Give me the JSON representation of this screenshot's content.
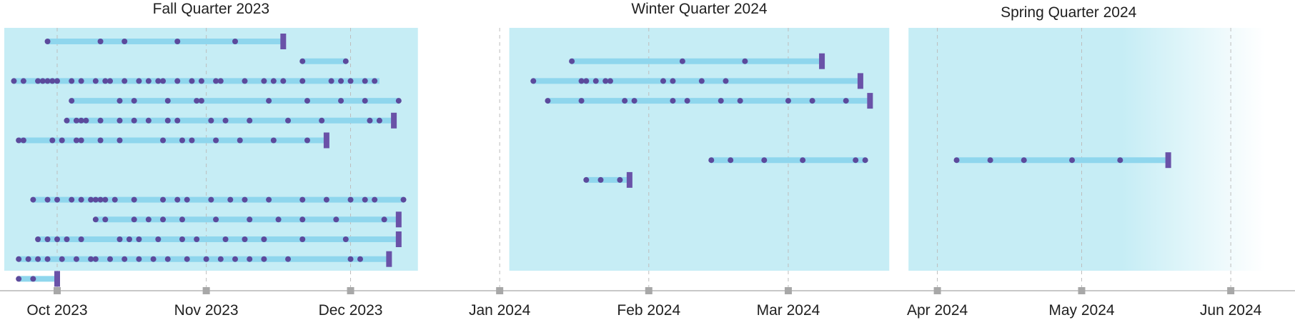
{
  "chart_data": {
    "type": "timeline",
    "x_axis": {
      "type": "date",
      "range": [
        "2023-09-20",
        "2024-06-08"
      ],
      "ticks": [
        {
          "date": "2023-10-01",
          "label": "Oct 2023"
        },
        {
          "date": "2023-11-01",
          "label": "Nov 2023"
        },
        {
          "date": "2023-12-01",
          "label": "Dec 2023"
        },
        {
          "date": "2024-01-01",
          "label": "Jan 2024"
        },
        {
          "date": "2024-02-01",
          "label": "Feb 2024"
        },
        {
          "date": "2024-03-01",
          "label": "Mar 2024"
        },
        {
          "date": "2024-04-01",
          "label": "Apr 2024"
        },
        {
          "date": "2024-05-01",
          "label": "May 2024"
        },
        {
          "date": "2024-06-01",
          "label": "Jun 2024"
        }
      ],
      "grid": true
    },
    "quarters": [
      {
        "name": "Fall Quarter 2023",
        "start": "2023-09-20",
        "end": "2023-12-15"
      },
      {
        "name": "Winter Quarter 2024",
        "start": "2024-01-03",
        "end": "2024-03-22"
      },
      {
        "name": "Spring Quarter 2024",
        "start": "2024-03-26",
        "end": "2024-06-08",
        "fade_out": true
      }
    ],
    "rows": [
      {
        "segments": [
          {
            "start": "2023-09-29",
            "end": "2023-11-17",
            "end_marker": true,
            "events": [
              "2023-09-29",
              "2023-10-10",
              "2023-10-15",
              "2023-10-26",
              "2023-11-07"
            ]
          }
        ]
      },
      {
        "segments": [
          {
            "start": "2023-11-21",
            "end": "2023-11-30",
            "end_marker": false,
            "events": [
              "2023-11-21",
              "2023-11-30"
            ]
          },
          {
            "start": "2024-01-16",
            "end": "2024-03-08",
            "end_marker": true,
            "events": [
              "2024-01-16",
              "2024-02-08",
              "2024-02-21"
            ]
          }
        ]
      },
      {
        "segments": [
          {
            "start": "2023-09-22",
            "end": "2023-12-07",
            "end_marker": false,
            "events": [
              "2023-09-22",
              "2023-09-24",
              "2023-09-27",
              "2023-09-28",
              "2023-09-29",
              "2023-09-30",
              "2023-10-01",
              "2023-10-04",
              "2023-10-06",
              "2023-10-09",
              "2023-10-11",
              "2023-10-12",
              "2023-10-15",
              "2023-10-18",
              "2023-10-20",
              "2023-10-22",
              "2023-10-23",
              "2023-10-26",
              "2023-10-29",
              "2023-10-31",
              "2023-11-03",
              "2023-11-04",
              "2023-11-09",
              "2023-11-13",
              "2023-11-15",
              "2023-11-17",
              "2023-11-21",
              "2023-11-27",
              "2023-11-29",
              "2023-12-01",
              "2023-12-04",
              "2023-12-06"
            ]
          },
          {
            "start": "2024-01-08",
            "end": "2024-03-16",
            "end_marker": true,
            "events": [
              "2024-01-08",
              "2024-01-18",
              "2024-01-19",
              "2024-01-21",
              "2024-01-23",
              "2024-01-24",
              "2024-02-04",
              "2024-02-06",
              "2024-02-12",
              "2024-02-17"
            ]
          }
        ]
      },
      {
        "segments": [
          {
            "start": "2023-10-04",
            "end": "2023-12-11",
            "end_marker": false,
            "events": [
              "2023-10-04",
              "2023-10-14",
              "2023-10-17",
              "2023-10-24",
              "2023-10-30",
              "2023-10-31",
              "2023-11-14",
              "2023-11-22",
              "2023-11-29",
              "2023-12-04",
              "2023-12-11"
            ]
          },
          {
            "start": "2024-01-11",
            "end": "2024-03-18",
            "end_marker": true,
            "events": [
              "2024-01-11",
              "2024-01-18",
              "2024-01-27",
              "2024-01-29",
              "2024-02-06",
              "2024-02-09",
              "2024-02-16",
              "2024-02-20",
              "2024-03-01",
              "2024-03-06",
              "2024-03-13"
            ]
          }
        ]
      },
      {
        "segments": [
          {
            "start": "2023-10-03",
            "end": "2023-12-10",
            "end_marker": true,
            "events": [
              "2023-10-03",
              "2023-10-05",
              "2023-10-06",
              "2023-10-07",
              "2023-10-10",
              "2023-10-14",
              "2023-10-17",
              "2023-10-20",
              "2023-10-24",
              "2023-10-26",
              "2023-11-02",
              "2023-11-05",
              "2023-11-10",
              "2023-11-18",
              "2023-11-25",
              "2023-12-05",
              "2023-12-07"
            ]
          }
        ]
      },
      {
        "segments": [
          {
            "start": "2023-09-23",
            "end": "2023-11-26",
            "end_marker": true,
            "events": [
              "2023-09-23",
              "2023-09-24",
              "2023-09-30",
              "2023-10-02",
              "2023-10-05",
              "2023-10-06",
              "2023-10-10",
              "2023-10-14",
              "2023-10-23",
              "2023-10-27",
              "2023-10-29",
              "2023-11-03",
              "2023-11-08",
              "2023-11-15",
              "2023-11-22"
            ]
          }
        ]
      },
      {
        "segments": [
          {
            "start": "2024-02-14",
            "end": "2024-03-17",
            "end_marker": false,
            "events": [
              "2024-02-14",
              "2024-02-18",
              "2024-02-25",
              "2024-03-04",
              "2024-03-15",
              "2024-03-17"
            ]
          },
          {
            "start": "2024-04-05",
            "end": "2024-05-19",
            "end_marker": true,
            "events": [
              "2024-04-05",
              "2024-04-12",
              "2024-04-19",
              "2024-04-29",
              "2024-05-09"
            ]
          }
        ]
      },
      {
        "segments": [
          {
            "start": "2024-01-19",
            "end": "2024-01-28",
            "end_marker": true,
            "events": [
              "2024-01-19",
              "2024-01-22",
              "2024-01-26"
            ]
          }
        ]
      },
      {
        "segments": [
          {
            "start": "2023-09-26",
            "end": "2023-12-12",
            "end_marker": false,
            "events": [
              "2023-09-26",
              "2023-09-29",
              "2023-10-01",
              "2023-10-04",
              "2023-10-06",
              "2023-10-08",
              "2023-10-09",
              "2023-10-10",
              "2023-10-11",
              "2023-10-13",
              "2023-10-17",
              "2023-10-23",
              "2023-10-26",
              "2023-10-28",
              "2023-11-02",
              "2023-11-06",
              "2023-11-09",
              "2023-11-14",
              "2023-11-21",
              "2023-11-26",
              "2023-12-01",
              "2023-12-04",
              "2023-12-06",
              "2023-12-12"
            ]
          }
        ]
      },
      {
        "segments": [
          {
            "start": "2023-10-09",
            "end": "2023-12-11",
            "end_marker": true,
            "events": [
              "2023-10-09",
              "2023-10-11",
              "2023-10-17",
              "2023-10-20",
              "2023-10-23",
              "2023-10-27",
              "2023-11-03",
              "2023-11-10",
              "2023-11-16",
              "2023-11-21",
              "2023-11-28",
              "2023-12-08"
            ]
          }
        ]
      },
      {
        "segments": [
          {
            "start": "2023-09-27",
            "end": "2023-12-11",
            "end_marker": true,
            "events": [
              "2023-09-27",
              "2023-09-29",
              "2023-10-01",
              "2023-10-03",
              "2023-10-06",
              "2023-10-14",
              "2023-10-16",
              "2023-10-18",
              "2023-10-22",
              "2023-10-27",
              "2023-10-30",
              "2023-11-05",
              "2023-11-09",
              "2023-11-13",
              "2023-11-21",
              "2023-11-30"
            ]
          }
        ]
      },
      {
        "segments": [
          {
            "start": "2023-09-23",
            "end": "2023-12-09",
            "end_marker": true,
            "events": [
              "2023-09-23",
              "2023-09-25",
              "2023-09-27",
              "2023-09-29",
              "2023-10-02",
              "2023-10-05",
              "2023-10-08",
              "2023-10-09",
              "2023-10-12",
              "2023-10-15",
              "2023-10-18",
              "2023-10-21",
              "2023-10-24",
              "2023-10-28",
              "2023-11-01",
              "2023-11-04",
              "2023-11-07",
              "2023-11-10",
              "2023-11-13",
              "2023-11-18",
              "2023-12-01",
              "2023-12-03"
            ]
          }
        ]
      },
      {
        "segments": [
          {
            "start": "2023-09-23",
            "end": "2023-10-01",
            "end_marker": true,
            "events": [
              "2023-09-23",
              "2023-09-26"
            ]
          }
        ]
      }
    ],
    "colors": {
      "quarter_fill": "#c6edf5",
      "bar": "#8fd6ed",
      "dot": "#5c4a9c",
      "end_marker": "#6a52a8",
      "grid": "#bdbdbd",
      "axis": "#c8c8c8",
      "tick": "#a8a8a8",
      "text": "#1f1f1f"
    }
  }
}
